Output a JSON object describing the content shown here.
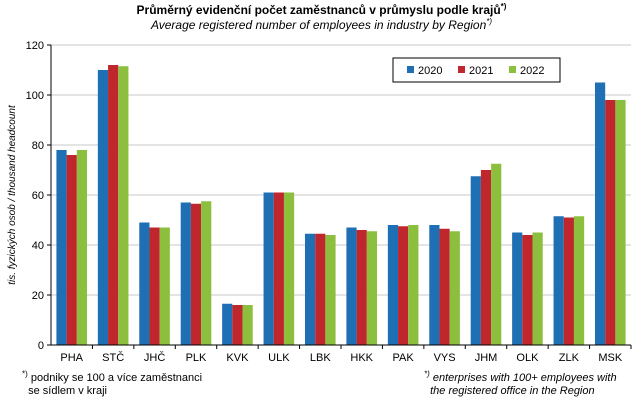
{
  "header": {
    "title_cs": "Průměrný evidenční počet zaměstnanců v průmyslu podle krajů",
    "title_mark": "*)",
    "title_en": "Average registered number of employees in industry by Region",
    "subtitle_mark": "*)"
  },
  "notes": {
    "cs_mark": "*)",
    "cs_line1": "podniky se 100 a více zaměstnanci",
    "cs_line2": "se sídlem v kraji",
    "en_mark": "*)",
    "en_line1": "enterprises with 100+ employees with",
    "en_line2": "the registered office in the Region"
  },
  "chart_data": {
    "type": "bar",
    "title": "Průměrný evidenční počet zaměstnanců v průmyslu podle krajů*)",
    "subtitle": "Average registered number of employees in industry by Region*)",
    "xlabel": "",
    "ylabel": "tis. fyzických osob / thousand headcount",
    "ylim": [
      0,
      120
    ],
    "yticks": [
      0,
      20,
      40,
      60,
      80,
      100,
      120
    ],
    "grid": true,
    "legend_position": "top-right",
    "categories": [
      "PHA",
      "STČ",
      "JHČ",
      "PLK",
      "KVK",
      "ULK",
      "LBK",
      "HKK",
      "PAK",
      "VYS",
      "JHM",
      "OLK",
      "ZLK",
      "MSK"
    ],
    "series": [
      {
        "name": "2020",
        "color": "#1f6fb5",
        "values": [
          78,
          110,
          49,
          57,
          16.5,
          61,
          44.5,
          47,
          48,
          48,
          67.5,
          45,
          51.5,
          105
        ]
      },
      {
        "name": "2021",
        "color": "#c0272d",
        "values": [
          76,
          112,
          47,
          56.5,
          16,
          61,
          44.5,
          46,
          47.5,
          46.5,
          70,
          44,
          51,
          98
        ]
      },
      {
        "name": "2022",
        "color": "#8dbf3e",
        "values": [
          78,
          111.5,
          47,
          57.5,
          16,
          61,
          44,
          45.5,
          48,
          45.5,
          72.5,
          45,
          51.5,
          98
        ]
      }
    ]
  }
}
